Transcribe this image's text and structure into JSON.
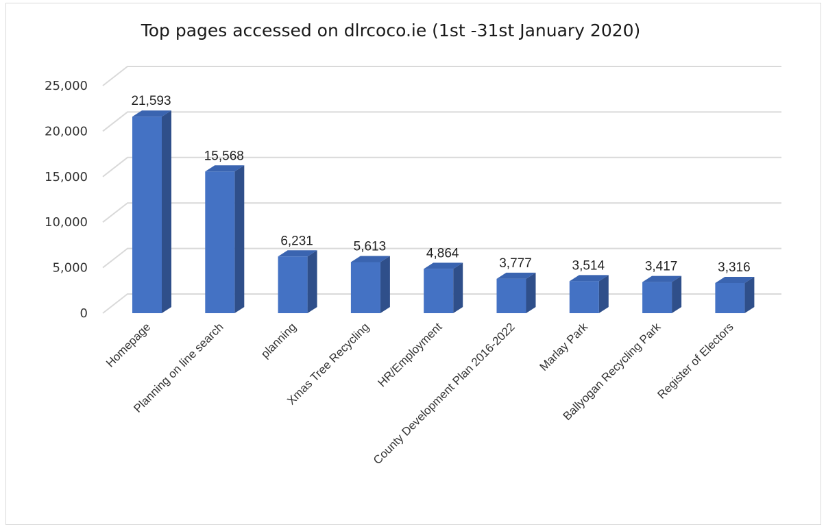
{
  "chart_data": {
    "type": "bar",
    "title": "Top pages accessed on dlrcoco.ie (1st -31st January 2020)",
    "xlabel": "",
    "ylabel": "",
    "ylim": [
      0,
      25000
    ],
    "y_ticks": [
      "0",
      "5,000",
      "10,000",
      "15,000",
      "20,000",
      "25,000"
    ],
    "categories": [
      "Homepage",
      "Planning on line search",
      "planning",
      "Xmas Tree Recycling",
      "HR/Employment",
      "County Development Plan 2016-2022",
      "Marlay Park",
      "Ballyogan Recycling Park",
      "Register of Electors"
    ],
    "values": [
      21593,
      15568,
      6231,
      5613,
      4864,
      3777,
      3514,
      3417,
      3316
    ],
    "data_labels": [
      "21,593",
      "15,568",
      "6,231",
      "5,613",
      "4,864",
      "3,777",
      "3,514",
      "3,417",
      "3,316"
    ],
    "grid": true,
    "legend": "none",
    "style": "3d-column"
  },
  "colors": {
    "bar_front": "#4472c4",
    "bar_side": "#2f4f8a",
    "bar_top": "#3a64b0",
    "gridline": "#d9d9d9"
  }
}
